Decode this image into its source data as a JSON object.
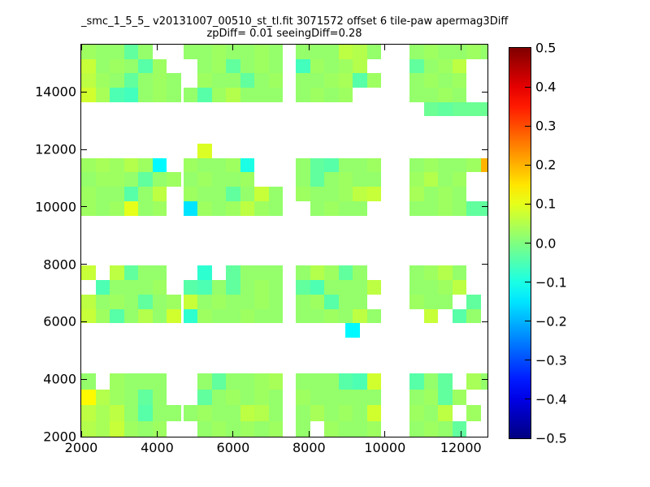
{
  "figure": {
    "title": "_smc_1_5_5_ v20131007_00510_st_tl.fit 3071572 offset 6 tile-paw apermag3Diff",
    "subtitle": "zpDiff= 0.01 seeingDiff=0.28"
  },
  "chart_data": {
    "type": "heatmap",
    "title": "_smc_1_5_5_ v20131007_00510_st_tl.fit 3071572 offset 6 tile-paw apermag3Diff",
    "subtitle": "zpDiff= 0.01 seeingDiff=0.28",
    "xlabel": "",
    "ylabel": "",
    "xlim": [
      2000,
      12700
    ],
    "ylim": [
      2000,
      15650
    ],
    "xticks": [
      2000,
      4000,
      6000,
      8000,
      10000,
      12000
    ],
    "xtick_labels": [
      "2000",
      "4000",
      "6000",
      "8000",
      "10000",
      "12000"
    ],
    "yticks": [
      2000,
      4000,
      6000,
      8000,
      10000,
      12000,
      14000
    ],
    "ytick_labels": [
      "2000",
      "4000",
      "6000",
      "8000",
      "10000",
      "12000",
      "14000"
    ],
    "grid": false,
    "colormap": "jet",
    "background": "#ffffff",
    "colorbar": {
      "vmin": -0.5,
      "vmax": 0.5,
      "tick_values": [
        0.5,
        0.4,
        0.3,
        0.2,
        0.1,
        0.0,
        -0.1,
        -0.2,
        -0.3,
        -0.4,
        -0.5
      ],
      "tick_labels": [
        "0.5",
        "0.4",
        "0.3",
        "0.2",
        "0.1",
        "0.0",
        "−0.1",
        "−0.2",
        "−0.3",
        "−0.4",
        "−0.5"
      ],
      "position": "right"
    },
    "cell_dx": 375,
    "blocks": [
      {
        "name": "row1-col1",
        "x0": 2000,
        "y_top": 15650,
        "dy": 500,
        "values": [
          [
            0.03,
            0.02,
            0.02,
            -0.03,
            0.02,
            null,
            null
          ],
          [
            0.07,
            0.02,
            0.03,
            0.02,
            -0.04,
            0.03,
            null
          ],
          [
            0.06,
            0.03,
            0.02,
            -0.03,
            0.02,
            0.03,
            0.02
          ],
          [
            0.08,
            0.04,
            -0.05,
            -0.06,
            0.02,
            0.03,
            0.02
          ]
        ]
      },
      {
        "name": "row1-col2",
        "x0": 4690,
        "y_top": 15650,
        "dy": 500,
        "values": [
          [
            0.02,
            0.02,
            0.03,
            0.02,
            0.02,
            0.03,
            0.02
          ],
          [
            null,
            0.02,
            0.03,
            -0.03,
            0.02,
            0.03,
            0.02
          ],
          [
            null,
            0.03,
            0.02,
            0.02,
            -0.03,
            0.02,
            0.03
          ],
          [
            0.02,
            -0.04,
            0.03,
            0.05,
            0.02,
            0.02,
            0.02
          ]
        ]
      },
      {
        "name": "row1-col3",
        "x0": 7650,
        "y_top": 15650,
        "dy": 500,
        "values": [
          [
            0.02,
            0.02,
            0.02,
            0.06,
            0.05,
            0.02
          ],
          [
            -0.06,
            0.03,
            0.02,
            0.03,
            0.05,
            null
          ],
          [
            0.02,
            0.02,
            0.03,
            0.04,
            -0.04,
            0.03
          ],
          [
            0.02,
            0.03,
            0.02,
            0.03,
            null,
            null
          ]
        ]
      },
      {
        "name": "row1-col4",
        "x0": 10650,
        "y_top": 15650,
        "dy": 500,
        "values": [
          [
            0.02,
            0.03,
            0.02,
            0.02,
            0.03,
            0.02
          ],
          [
            -0.03,
            0.02,
            0.03,
            0.06,
            null,
            null
          ],
          [
            0.02,
            0.03,
            0.02,
            0.03,
            null,
            null
          ],
          [
            0.02,
            0.02,
            0.03,
            0.02,
            null,
            null
          ],
          [
            null,
            -0.02,
            -0.03,
            -0.02,
            -0.02,
            -0.02
          ]
        ]
      },
      {
        "name": "row2-col1",
        "x0": 2000,
        "y_top": 11700,
        "dy": 500,
        "values": [
          [
            0.03,
            0.04,
            0.03,
            0.05,
            0.03,
            -0.13,
            null
          ],
          [
            0.02,
            0.03,
            0.03,
            0.02,
            -0.03,
            0.02,
            0.03
          ],
          [
            0.03,
            0.02,
            0.02,
            -0.04,
            0.02,
            0.06,
            null
          ],
          [
            0.03,
            0.02,
            0.03,
            0.1,
            0.02,
            0.03,
            null
          ]
        ]
      },
      {
        "name": "row2-col2-protrusion",
        "x0": 5065,
        "y_top": 12200,
        "dy": 500,
        "values": [
          [
            0.09
          ]
        ]
      },
      {
        "name": "row2-col2",
        "x0": 4690,
        "y_top": 11700,
        "dy": 500,
        "values": [
          [
            0.03,
            0.02,
            0.02,
            0.03,
            -0.1,
            null,
            null
          ],
          [
            0.02,
            0.03,
            0.02,
            0.02,
            0.03,
            null,
            null
          ],
          [
            0.03,
            0.02,
            0.02,
            -0.03,
            0.02,
            0.07,
            0.02
          ],
          [
            -0.15,
            0.03,
            0.02,
            0.03,
            0.06,
            0.03,
            0.02
          ]
        ]
      },
      {
        "name": "row2-col3",
        "x0": 7650,
        "y_top": 11700,
        "dy": 500,
        "values": [
          [
            0.02,
            -0.03,
            -0.04,
            0.02,
            0.02,
            0.03
          ],
          [
            0.02,
            -0.03,
            0.02,
            0.03,
            0.02,
            0.02
          ],
          [
            0.03,
            0.02,
            0.02,
            0.03,
            0.06,
            0.07
          ],
          [
            null,
            0.02,
            0.03,
            0.02,
            0.02,
            null
          ]
        ]
      },
      {
        "name": "row2-col4",
        "x0": 10650,
        "y_top": 11700,
        "dy": 500,
        "values": [
          [
            0.02,
            0.03,
            0.02,
            0.02,
            0.03,
            0.2
          ],
          [
            0.03,
            0.05,
            0.02,
            0.03,
            null,
            null
          ],
          [
            0.04,
            0.02,
            0.03,
            0.02,
            null,
            null
          ],
          [
            0.02,
            0.02,
            0.03,
            0.02,
            -0.03,
            -0.03
          ]
        ]
      },
      {
        "name": "row3-col1",
        "x0": 2000,
        "y_top": 7950,
        "dy": 500,
        "values": [
          [
            0.07,
            null,
            0.06,
            -0.03,
            0.02,
            0.02,
            null
          ],
          [
            null,
            -0.05,
            0.02,
            0.02,
            0.02,
            0.03,
            null
          ],
          [
            0.06,
            0.02,
            0.03,
            0.02,
            -0.03,
            0.02,
            0.03
          ],
          [
            0.07,
            0.03,
            -0.04,
            0.02,
            0.05,
            0.02,
            0.08
          ]
        ]
      },
      {
        "name": "row3-col2",
        "x0": 4690,
        "y_top": 7950,
        "dy": 500,
        "values": [
          [
            null,
            -0.08,
            null,
            -0.03,
            0.02,
            0.02,
            0.02
          ],
          [
            -0.04,
            -0.05,
            0.02,
            -0.03,
            0.02,
            0.03,
            0.02
          ],
          [
            0.07,
            0.02,
            0.03,
            0.02,
            0.02,
            0.03,
            0.02
          ],
          [
            -0.08,
            0.03,
            0.02,
            0.02,
            0.03,
            0.02,
            0.02
          ]
        ]
      },
      {
        "name": "row3-col3",
        "x0": 7650,
        "y_top": 7950,
        "dy": 500,
        "values": [
          [
            0.02,
            0.05,
            0.03,
            -0.03,
            0.02,
            null
          ],
          [
            -0.03,
            -0.05,
            0.02,
            0.02,
            0.02,
            0.06
          ],
          [
            0.02,
            0.03,
            -0.04,
            0.02,
            0.02,
            null
          ],
          [
            0.02,
            0.02,
            0.03,
            0.02,
            0.06,
            0.02
          ]
        ]
      },
      {
        "name": "row3-col3-protrusion",
        "x0": 8960,
        "y_top": 5950,
        "dy": 500,
        "values": [
          [
            -0.13
          ]
        ]
      },
      {
        "name": "row3-col4",
        "x0": 10650,
        "y_top": 7950,
        "dy": 500,
        "values": [
          [
            0.02,
            0.03,
            0.05,
            0.02,
            null,
            null
          ],
          [
            0.02,
            0.02,
            0.03,
            0.06,
            null,
            null
          ],
          [
            0.03,
            0.02,
            0.02,
            null,
            -0.03,
            null
          ],
          [
            null,
            0.07,
            null,
            -0.04,
            0.02,
            null
          ]
        ]
      },
      {
        "name": "row4-col1",
        "x0": 2000,
        "y_top": 4200,
        "dy": 550,
        "values": [
          [
            0.02,
            null,
            0.03,
            0.02,
            0.02,
            0.02,
            null
          ],
          [
            0.13,
            0.05,
            0.03,
            0.02,
            -0.03,
            0.02,
            null
          ],
          [
            0.06,
            0.04,
            0.06,
            0.02,
            -0.04,
            0.02,
            0.02
          ],
          [
            0.05,
            0.04,
            0.07,
            0.03,
            0.02,
            0.03,
            null
          ]
        ]
      },
      {
        "name": "row4-col2",
        "x0": 4690,
        "y_top": 4200,
        "dy": 550,
        "values": [
          [
            null,
            0.02,
            -0.03,
            0.02,
            0.02,
            0.03,
            0.04
          ],
          [
            null,
            -0.03,
            0.02,
            0.03,
            0.02,
            0.03,
            0.02
          ],
          [
            0.02,
            0.03,
            0.02,
            0.02,
            0.06,
            0.05,
            0.02
          ],
          [
            null,
            0.02,
            0.03,
            0.02,
            0.03,
            0.02,
            0.03
          ]
        ]
      },
      {
        "name": "row4-col3",
        "x0": 7650,
        "y_top": 4200,
        "dy": 550,
        "values": [
          [
            0.02,
            0.02,
            0.02,
            -0.04,
            -0.05,
            0.08
          ],
          [
            0.03,
            0.02,
            0.02,
            0.02,
            0.02,
            0.02
          ],
          [
            0.02,
            0.04,
            0.02,
            0.03,
            0.02,
            0.08
          ],
          [
            0.02,
            null,
            0.03,
            0.02,
            0.02,
            0.03
          ]
        ]
      },
      {
        "name": "row4-col4",
        "x0": 10650,
        "y_top": 4200,
        "dy": 550,
        "values": [
          [
            -0.04,
            0.02,
            -0.03,
            null,
            0.04,
            0.02
          ],
          [
            0.02,
            0.03,
            -0.03,
            0.03,
            null,
            null
          ],
          [
            0.03,
            0.02,
            0.06,
            null,
            0.03,
            null
          ],
          [
            0.02,
            0.03,
            0.02,
            -0.03,
            null,
            null
          ]
        ]
      }
    ]
  }
}
